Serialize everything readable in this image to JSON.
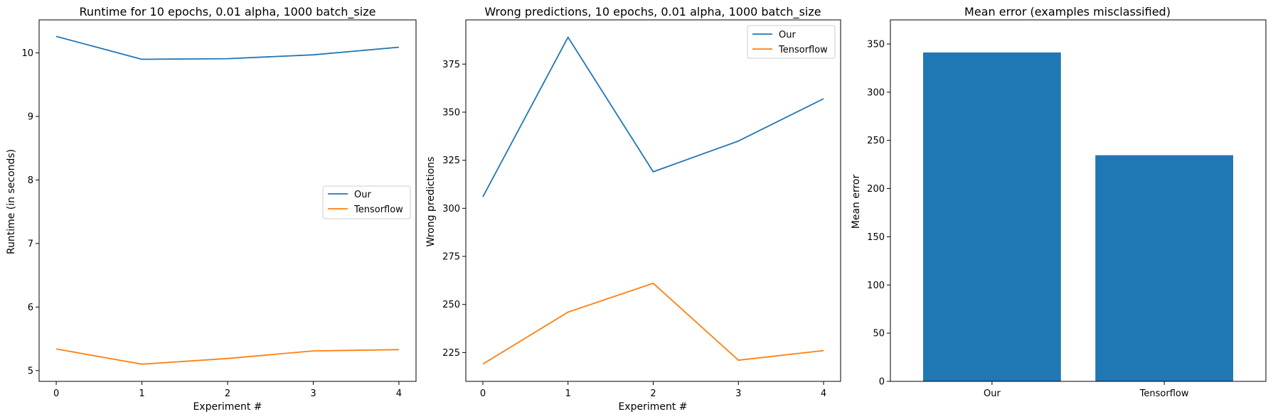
{
  "chart_data": [
    {
      "type": "line",
      "title": "Runtime for 10 epochs, 0.01 alpha, 1000 batch_size",
      "xlabel": "Experiment #",
      "ylabel": "Runtime (in seconds)",
      "x": [
        0,
        1,
        2,
        3,
        4
      ],
      "xticks": [
        "0",
        "1",
        "2",
        "3",
        "4"
      ],
      "xlim": [
        -0.2,
        4.2
      ],
      "ylim": [
        4.83,
        10.52
      ],
      "yticks": [
        5,
        6,
        7,
        8,
        9,
        10
      ],
      "legend_position": "center-right",
      "series": [
        {
          "name": "Our",
          "color": "#1f77b4",
          "values": [
            10.26,
            9.9,
            9.91,
            9.97,
            10.09
          ]
        },
        {
          "name": "Tensorflow",
          "color": "#ff7f0e",
          "values": [
            5.34,
            5.1,
            5.19,
            5.31,
            5.33
          ]
        }
      ]
    },
    {
      "type": "line",
      "title": "Wrong predictions, 10 epochs, 0.01 alpha, 1000 batch_size",
      "xlabel": "Experiment #",
      "ylabel": "Wrong predictions",
      "x": [
        0,
        1,
        2,
        3,
        4
      ],
      "xticks": [
        "0",
        "1",
        "2",
        "3",
        "4"
      ],
      "xlim": [
        -0.2,
        4.2
      ],
      "ylim": [
        210,
        398
      ],
      "yticks": [
        225,
        250,
        275,
        300,
        325,
        350,
        375
      ],
      "legend_position": "top-right",
      "series": [
        {
          "name": "Our",
          "color": "#1f77b4",
          "values": [
            306,
            389,
            319,
            335,
            357
          ]
        },
        {
          "name": "Tensorflow",
          "color": "#ff7f0e",
          "values": [
            219,
            246,
            261,
            221,
            226
          ]
        }
      ]
    },
    {
      "type": "bar",
      "title": "Mean error (examples misclassified)",
      "xlabel": "",
      "ylabel": "Mean error",
      "categories": [
        "Our",
        "Tensorflow"
      ],
      "values": [
        341.2,
        234.6
      ],
      "color": "#1f77b4",
      "ylim": [
        0,
        375
      ],
      "yticks": [
        0,
        50,
        100,
        150,
        200,
        250,
        300,
        350
      ]
    }
  ]
}
